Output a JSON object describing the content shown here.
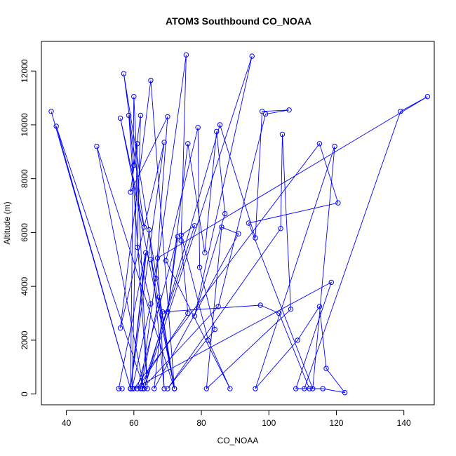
{
  "chart_data": {
    "type": "line",
    "title": "ATOM3 Southbound CO_NOAA",
    "xlabel": "CO_NOAA",
    "ylabel": "Altitude (m)",
    "xlim": [
      32.6,
      149.0
    ],
    "ylim": [
      -400,
      13100
    ],
    "x_ticks": [
      40,
      60,
      80,
      100,
      120,
      140
    ],
    "y_ticks": [
      0,
      2000,
      4000,
      6000,
      8000,
      10000,
      12000
    ],
    "series": [
      {
        "color": "#0000ff",
        "marker": "open-circle",
        "x": [
          35.5,
          59,
          37,
          63,
          49,
          72,
          56,
          63,
          57,
          72,
          65,
          56,
          69,
          59,
          60,
          64,
          58.5,
          60,
          62,
          61,
          65,
          59.5,
          61,
          59,
          70,
          66.5,
          65,
          72,
          67.5,
          62,
          75.5,
          74,
          76,
          61,
          73,
          70,
          76,
          81,
          84.5,
          87,
          78,
          95,
          63,
          85.5,
          96,
          98,
          106,
          99,
          85,
          62.5,
          78,
          74,
          82,
          88.5,
          69.5,
          79,
          79.5,
          84,
          70,
          103.5,
          104,
          106.5,
          81.5,
          86,
          91,
          66,
          68.5,
          97.5,
          103,
          112,
          108,
          118.5,
          60,
          115,
          120.5,
          94,
          113,
          119.5,
          96,
          108.5,
          115,
          117,
          122.5,
          116,
          110.5,
          139,
          147,
          67,
          69,
          64.5,
          59,
          63.5,
          55.5,
          56.5
        ],
        "y": [
          10500,
          200,
          9950,
          200,
          9200,
          200,
          10250,
          6200,
          11900,
          200,
          11650,
          2450,
          9350,
          200,
          11050,
          200,
          10350,
          8500,
          10350,
          5450,
          3350,
          200,
          9300,
          7500,
          10300,
          4300,
          5000,
          200,
          3600,
          200,
          12600,
          5700,
          3000,
          200,
          5850,
          3050,
          9300,
          5250,
          9750,
          6700,
          2900,
          12550,
          200,
          10000,
          5800,
          10500,
          10550,
          10400,
          3250,
          200,
          6250,
          5900,
          2000,
          200,
          4950,
          9900,
          4700,
          2400,
          200,
          6150,
          9650,
          3150,
          200,
          6200,
          5950,
          200,
          3050,
          3300,
          3000,
          200,
          200,
          4150,
          200,
          9300,
          7100,
          6350,
          200,
          9200,
          200,
          2000,
          3250,
          950,
          50,
          200,
          200,
          10500,
          11050,
          5050,
          200,
          6100,
          200,
          5250,
          200,
          200
        ]
      }
    ]
  }
}
